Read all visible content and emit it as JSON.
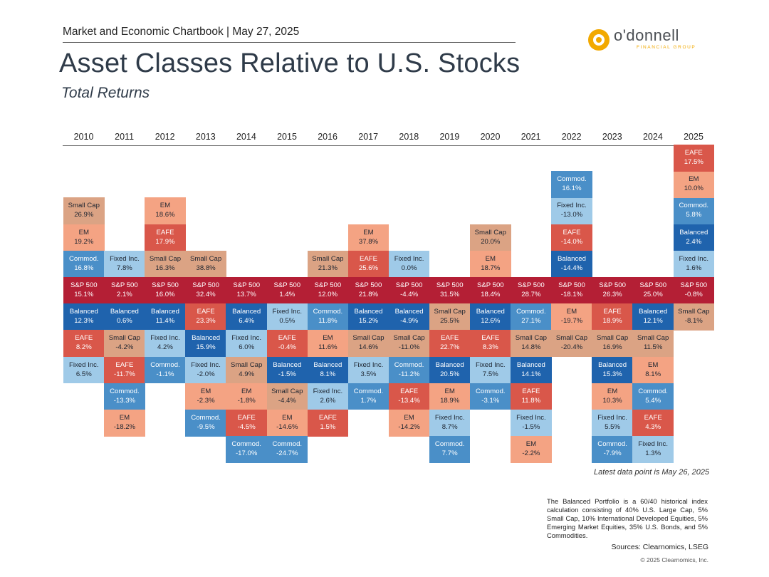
{
  "header": {
    "chartbook": "Market and Economic Chartbook | May 27, 2025",
    "title": "Asset Classes Relative to U.S. Stocks",
    "subtitle": "Total Returns"
  },
  "logo": {
    "wordmark": "o'donnell",
    "tagline": "FINANCIAL GROUP",
    "color": "#f2a900"
  },
  "footnotes": {
    "latest": "Latest data point is May 26, 2025",
    "balanced_note": "The Balanced Portfolio is a 60/40 historical index calculation consisting of 40% U.S. Large Cap, 5% Small Cap, 10% International Developed Equities, 5% Emerging Market Equities, 35% U.S. Bonds, and 5% Commodities.",
    "sources": "Sources: Clearnomics, LSEG",
    "copyright": "© 2025 Clearnomics, Inc."
  },
  "colors": {
    "Small Cap": "#dba384",
    "EM": "#f4a383",
    "EAFE": "#d9574a",
    "Commod.": "#4a8fc8",
    "Fixed Inc.": "#9fcae8",
    "S&P 500": "#b41f35",
    "Balanced": "#1f63ad"
  },
  "text_colors": {
    "Small Cap": "#1e2530",
    "EM": "#1e2530",
    "EAFE": "#ffffff",
    "Commod.": "#ffffff",
    "Fixed Inc.": "#1e2530",
    "S&P 500": "#ffffff",
    "Balanced": "#ffffff"
  },
  "chart_data": {
    "type": "table",
    "title": "Asset Classes Relative to U.S. Stocks",
    "subtitle": "Total Returns",
    "years": [
      "2010",
      "2011",
      "2012",
      "2013",
      "2014",
      "2015",
      "2016",
      "2017",
      "2018",
      "2019",
      "2020",
      "2021",
      "2022",
      "2023",
      "2024",
      "2025"
    ],
    "benchmark": "S&P 500",
    "columns": [
      {
        "above": [
          [
            "Commod.",
            "16.8%"
          ],
          [
            "EM",
            "19.2%"
          ],
          [
            "Small Cap",
            "26.9%"
          ]
        ],
        "sp500": "15.1%",
        "below": [
          [
            "Balanced",
            "12.3%"
          ],
          [
            "EAFE",
            "8.2%"
          ],
          [
            "Fixed Inc.",
            "6.5%"
          ]
        ]
      },
      {
        "above": [
          [
            "Fixed Inc.",
            "7.8%"
          ]
        ],
        "sp500": "2.1%",
        "below": [
          [
            "Balanced",
            "0.6%"
          ],
          [
            "Small Cap",
            "-4.2%"
          ],
          [
            "EAFE",
            "-11.7%"
          ],
          [
            "Commod.",
            "-13.3%"
          ],
          [
            "EM",
            "-18.2%"
          ]
        ]
      },
      {
        "above": [
          [
            "Small Cap",
            "16.3%"
          ],
          [
            "EAFE",
            "17.9%"
          ],
          [
            "EM",
            "18.6%"
          ]
        ],
        "sp500": "16.0%",
        "below": [
          [
            "Balanced",
            "11.4%"
          ],
          [
            "Fixed Inc.",
            "4.2%"
          ],
          [
            "Commod.",
            "-1.1%"
          ]
        ]
      },
      {
        "above": [
          [
            "Small Cap",
            "38.8%"
          ]
        ],
        "sp500": "32.4%",
        "below": [
          [
            "EAFE",
            "23.3%"
          ],
          [
            "Balanced",
            "15.9%"
          ],
          [
            "Fixed Inc.",
            "-2.0%"
          ],
          [
            "EM",
            "-2.3%"
          ],
          [
            "Commod.",
            "-9.5%"
          ]
        ]
      },
      {
        "above": [],
        "sp500": "13.7%",
        "below": [
          [
            "Balanced",
            "6.4%"
          ],
          [
            "Fixed Inc.",
            "6.0%"
          ],
          [
            "Small Cap",
            "4.9%"
          ],
          [
            "EM",
            "-1.8%"
          ],
          [
            "EAFE",
            "-4.5%"
          ],
          [
            "Commod.",
            "-17.0%"
          ]
        ]
      },
      {
        "above": [],
        "sp500": "1.4%",
        "below": [
          [
            "Fixed Inc.",
            "0.5%"
          ],
          [
            "EAFE",
            "-0.4%"
          ],
          [
            "Balanced",
            "-1.5%"
          ],
          [
            "Small Cap",
            "-4.4%"
          ],
          [
            "EM",
            "-14.6%"
          ],
          [
            "Commod.",
            "-24.7%"
          ]
        ]
      },
      {
        "above": [
          [
            "Small Cap",
            "21.3%"
          ]
        ],
        "sp500": "12.0%",
        "below": [
          [
            "Commod.",
            "11.8%"
          ],
          [
            "EM",
            "11.6%"
          ],
          [
            "Balanced",
            "8.1%"
          ],
          [
            "Fixed Inc.",
            "2.6%"
          ],
          [
            "EAFE",
            "1.5%"
          ]
        ]
      },
      {
        "above": [
          [
            "EAFE",
            "25.6%"
          ],
          [
            "EM",
            "37.8%"
          ]
        ],
        "sp500": "21.8%",
        "below": [
          [
            "Balanced",
            "15.2%"
          ],
          [
            "Small Cap",
            "14.6%"
          ],
          [
            "Fixed Inc.",
            "3.5%"
          ],
          [
            "Commod.",
            "1.7%"
          ]
        ]
      },
      {
        "above": [
          [
            "Fixed Inc.",
            "0.0%"
          ]
        ],
        "sp500": "-4.4%",
        "below": [
          [
            "Balanced",
            "-4.9%"
          ],
          [
            "Small Cap",
            "-11.0%"
          ],
          [
            "Commod.",
            "-11.2%"
          ],
          [
            "EAFE",
            "-13.4%"
          ],
          [
            "EM",
            "-14.2%"
          ]
        ]
      },
      {
        "above": [],
        "sp500": "31.5%",
        "below": [
          [
            "Small Cap",
            "25.5%"
          ],
          [
            "EAFE",
            "22.7%"
          ],
          [
            "Balanced",
            "20.5%"
          ],
          [
            "EM",
            "18.9%"
          ],
          [
            "Fixed Inc.",
            "8.7%"
          ],
          [
            "Commod.",
            "7.7%"
          ]
        ]
      },
      {
        "above": [
          [
            "EM",
            "18.7%"
          ],
          [
            "Small Cap",
            "20.0%"
          ]
        ],
        "sp500": "18.4%",
        "below": [
          [
            "Balanced",
            "12.6%"
          ],
          [
            "EAFE",
            "8.3%"
          ],
          [
            "Fixed Inc.",
            "7.5%"
          ],
          [
            "Commod.",
            "-3.1%"
          ]
        ]
      },
      {
        "above": [],
        "sp500": "28.7%",
        "below": [
          [
            "Commod.",
            "27.1%"
          ],
          [
            "Small Cap",
            "14.8%"
          ],
          [
            "Balanced",
            "14.1%"
          ],
          [
            "EAFE",
            "11.8%"
          ],
          [
            "Fixed Inc.",
            "-1.5%"
          ],
          [
            "EM",
            "-2.2%"
          ]
        ]
      },
      {
        "above": [
          [
            "Balanced",
            "-14.4%"
          ],
          [
            "EAFE",
            "-14.0%"
          ],
          [
            "Fixed Inc.",
            "-13.0%"
          ],
          [
            "Commod.",
            "16.1%"
          ]
        ],
        "sp500": "-18.1%",
        "below": [
          [
            "EM",
            "-19.7%"
          ],
          [
            "Small Cap",
            "-20.4%"
          ]
        ]
      },
      {
        "above": [],
        "sp500": "26.3%",
        "below": [
          [
            "EAFE",
            "18.9%"
          ],
          [
            "Small Cap",
            "16.9%"
          ],
          [
            "Balanced",
            "15.3%"
          ],
          [
            "EM",
            "10.3%"
          ],
          [
            "Fixed Inc.",
            "5.5%"
          ],
          [
            "Commod.",
            "-7.9%"
          ]
        ]
      },
      {
        "above": [],
        "sp500": "25.0%",
        "below": [
          [
            "Balanced",
            "12.1%"
          ],
          [
            "Small Cap",
            "11.5%"
          ],
          [
            "EM",
            "8.1%"
          ],
          [
            "Commod.",
            "5.4%"
          ],
          [
            "EAFE",
            "4.3%"
          ],
          [
            "Fixed Inc.",
            "1.3%"
          ]
        ]
      },
      {
        "above": [
          [
            "Fixed Inc.",
            "1.6%"
          ],
          [
            "Balanced",
            "2.4%"
          ],
          [
            "Commod.",
            "5.8%"
          ],
          [
            "EM",
            "10.0%"
          ],
          [
            "EAFE",
            "17.5%"
          ]
        ],
        "sp500": "-0.8%",
        "below": [
          [
            "Small Cap",
            "-8.1%"
          ]
        ]
      }
    ]
  }
}
